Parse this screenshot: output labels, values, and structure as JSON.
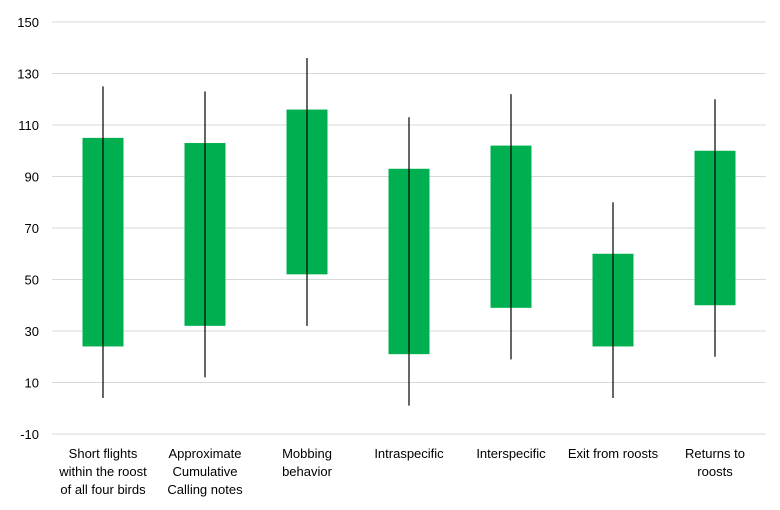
{
  "chart_data": {
    "type": "candlestick",
    "title": "",
    "xlabel": "",
    "ylabel": "",
    "ylim": [
      -10,
      150
    ],
    "yticks": [
      -10,
      10,
      30,
      50,
      70,
      90,
      110,
      130,
      150
    ],
    "grid": true,
    "legend": "none",
    "box_color": "#00b050",
    "categories": [
      [
        "Short flights",
        "within the roost",
        "of all four birds"
      ],
      [
        "Approximate",
        "Cumulative",
        "Calling notes"
      ],
      [
        "Mobbing",
        "behavior"
      ],
      [
        "Intraspecific"
      ],
      [
        "Interspecific"
      ],
      [
        "Exit from roosts"
      ],
      [
        "Returns to",
        "roosts"
      ]
    ],
    "box_low": [
      24,
      32,
      52,
      21,
      39,
      24,
      40
    ],
    "box_high": [
      105,
      103,
      116,
      93,
      102,
      60,
      100
    ],
    "whisker_low": [
      4,
      12,
      32,
      1,
      19,
      4,
      20
    ],
    "whisker_high": [
      125,
      123,
      136,
      113,
      122,
      80,
      120
    ]
  }
}
